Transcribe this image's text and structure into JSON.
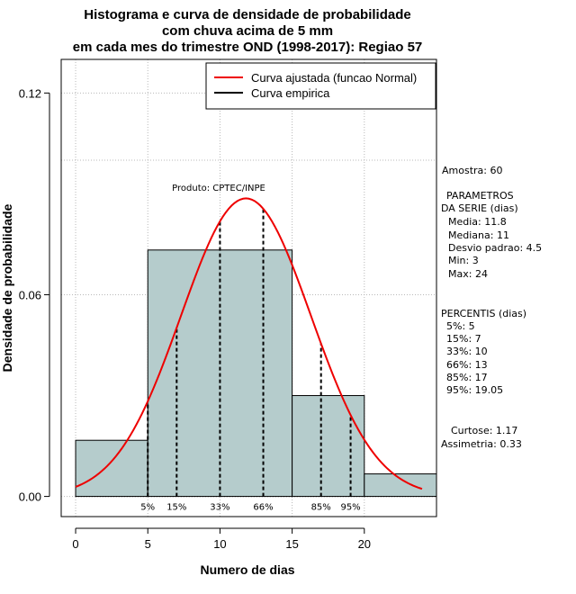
{
  "chart_data": {
    "type": "bar",
    "title_lines": [
      "Histograma e curva de densidade de probabilidade",
      "com chuva acima de 5 mm",
      "em cada mes do trimestre OND (1998-2017): Regiao 57"
    ],
    "xlabel": "Numero de dias",
    "ylabel": "Densidade de probabilidade",
    "xlim": [
      -1,
      25
    ],
    "ylim": [
      -0.006,
      0.13
    ],
    "x_ticks": [
      0,
      5,
      10,
      15,
      20
    ],
    "x_tick_labels": [
      "0",
      "5",
      "10",
      "15",
      "20"
    ],
    "y_ticks": [
      0.0,
      0.06,
      0.12
    ],
    "y_tick_labels": [
      "0.00",
      "0.06",
      "0.12"
    ],
    "grid_x": [
      0,
      5,
      10,
      15,
      20
    ],
    "grid_y": [
      0.0,
      0.06,
      0.1,
      0.12
    ],
    "histogram": {
      "color": "#b5cccc",
      "bins": [
        {
          "x0": 0,
          "x1": 5,
          "density": 0.0167
        },
        {
          "x0": 5,
          "x1": 15,
          "density": 0.0733
        },
        {
          "x0": 15,
          "x1": 20,
          "density": 0.03
        },
        {
          "x0": 20,
          "x1": 25,
          "density": 0.0067
        }
      ]
    },
    "normal_curve": {
      "name": "Curva ajustada (funcao Normal)",
      "color": "#ee0000",
      "mean": 11.8,
      "sd": 4.5,
      "x_range": [
        0,
        24
      ]
    },
    "empirical_curve": {
      "name": "Curva empirica",
      "color": "#000000"
    },
    "percentile_lines": [
      {
        "label": "5%",
        "x": 5
      },
      {
        "label": "15%",
        "x": 7
      },
      {
        "label": "33%",
        "x": 10
      },
      {
        "label": "66%",
        "x": 13
      },
      {
        "label": "85%",
        "x": 17
      },
      {
        "label": "95%",
        "x": 19.05
      }
    ],
    "legend": {
      "position": "top-right",
      "entries": [
        "Curva ajustada (funcao Normal)",
        "Curva empirica"
      ]
    },
    "annotation_product": "Produto: CPTEC/INPE"
  },
  "stats_panel": {
    "amostra": "Amostra: 60",
    "parametros_title_1": "PARAMETROS",
    "parametros_title_2": "DA SERIE (dias)",
    "media": "Media: 11.8",
    "mediana": "Mediana: 11",
    "desvio": "Desvio padrao: 4.5",
    "min": "Min: 3",
    "max": "Max: 24",
    "percentis_title": "PERCENTIS (dias)",
    "p5": "5%: 5",
    "p15": "15%: 7",
    "p33": "33%: 10",
    "p66": "66%: 13",
    "p85": "85%: 17",
    "p95": "95%: 19.05",
    "curtose": "Curtose: 1.17",
    "assimetria": "Assimetria: 0.33"
  }
}
